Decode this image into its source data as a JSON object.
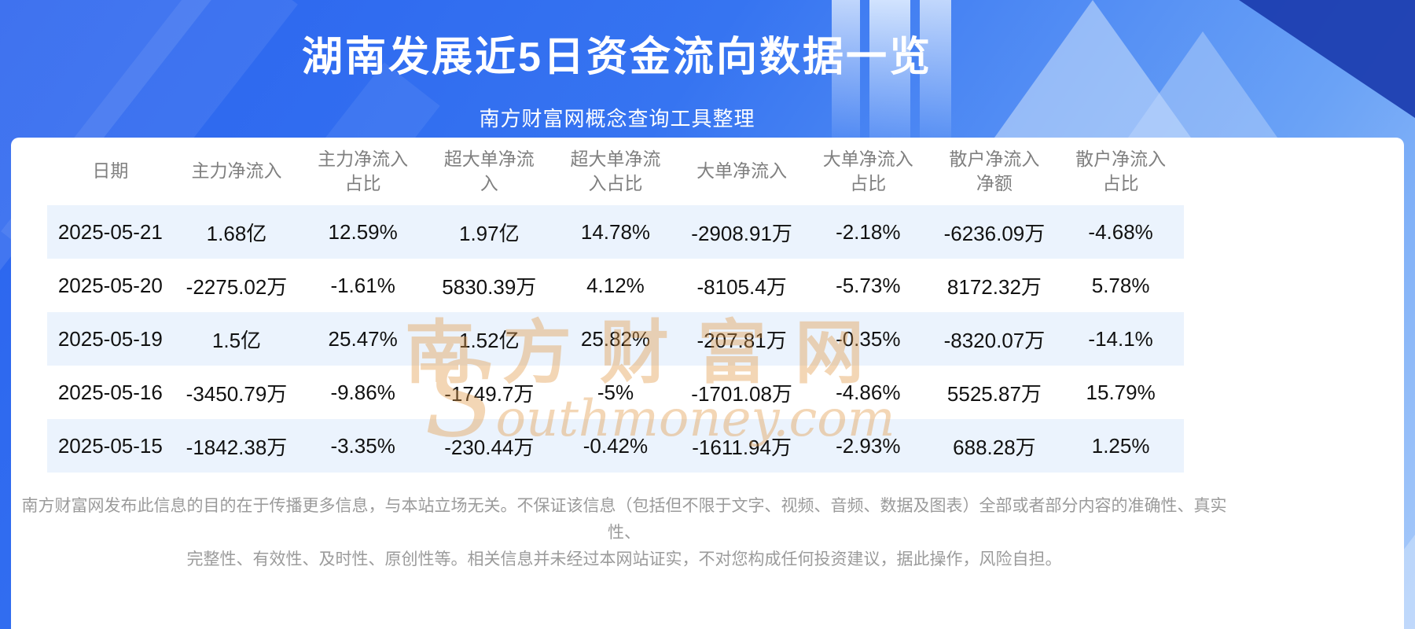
{
  "header": {
    "title": "湖南发展近5日资金流向数据一览",
    "subtitle": "南方财富网概念查询工具整理"
  },
  "chart_data": {
    "type": "table",
    "title": "湖南发展近5日资金流向数据一览",
    "columns": [
      "日期",
      "主力净流入",
      "主力净流入占比",
      "超大单净流入",
      "超大单净流入占比",
      "大单净流入",
      "大单净流入占比",
      "散户净流入净额",
      "散户净流入占比"
    ],
    "rows": [
      [
        "2025-05-21",
        "1.68亿",
        "12.59%",
        "1.97亿",
        "14.78%",
        "-2908.91万",
        "-2.18%",
        "-6236.09万",
        "-4.68%"
      ],
      [
        "2025-05-20",
        "-2275.02万",
        "-1.61%",
        "5830.39万",
        "4.12%",
        "-8105.4万",
        "-5.73%",
        "8172.32万",
        "5.78%"
      ],
      [
        "2025-05-19",
        "1.5亿",
        "25.47%",
        "1.52亿",
        "25.82%",
        "-207.81万",
        "-0.35%",
        "-8320.07万",
        "-14.1%"
      ],
      [
        "2025-05-16",
        "-3450.79万",
        "-9.86%",
        "-1749.7万",
        "-5%",
        "-1701.08万",
        "-4.86%",
        "5525.87万",
        "15.79%"
      ],
      [
        "2025-05-15",
        "-1842.38万",
        "-3.35%",
        "-230.44万",
        "-0.42%",
        "-1611.94万",
        "-2.93%",
        "688.28万",
        "1.25%"
      ]
    ]
  },
  "watermark": {
    "line1": "南方财富网",
    "line2": "Southmoney.com"
  },
  "footer": {
    "line1": "南方财富网发布此信息的目的在于传播更多信息，与本站立场无关。不保证该信息（包括但不限于文字、视频、音频、数据及图表）全部或者部分内容的准确性、真实性、",
    "line2": "完整性、有效性、及时性、原创性等。相关信息并未经过本网站证实，不对您构成任何投资建议，据此操作，风险自担。"
  },
  "colors": {
    "header_blue": "#2a63ee",
    "bg_bottom": "#a9cbfa",
    "dark_corner": "#1b3cae",
    "title_text": "#ffffff",
    "row_alt": "#ebf3fd",
    "header_text": "#7f7f7f",
    "data_text": "#111111",
    "footer_text": "#9b9b9b",
    "watermark": "#e29a48"
  }
}
